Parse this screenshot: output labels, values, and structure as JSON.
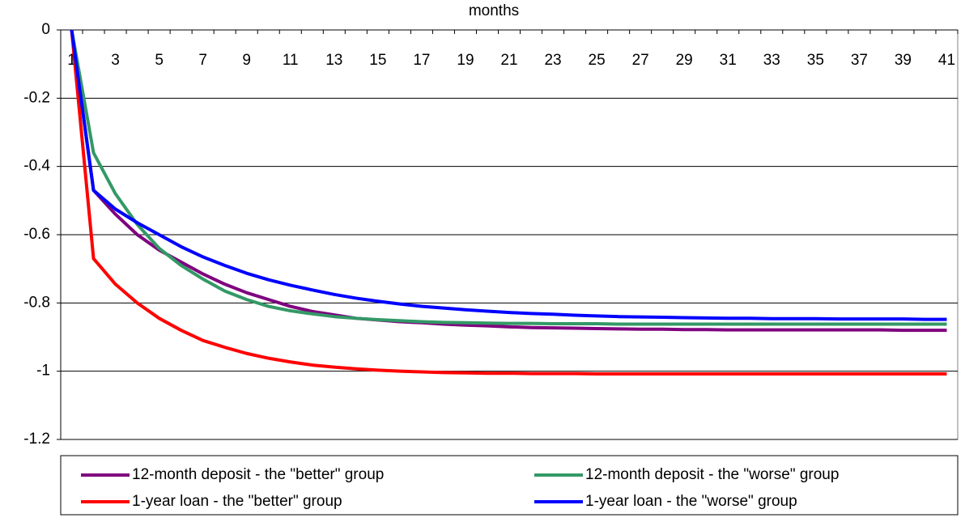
{
  "chart_data": {
    "type": "line",
    "x_label": "months",
    "categories": [
      1,
      null,
      3,
      null,
      5,
      null,
      7,
      null,
      9,
      null,
      11,
      null,
      13,
      null,
      15,
      null,
      17,
      null,
      19,
      null,
      21,
      null,
      23,
      null,
      25,
      null,
      27,
      null,
      29,
      null,
      31,
      null,
      33,
      null,
      35,
      null,
      37,
      null,
      39,
      null,
      41
    ],
    "ylim": [
      0,
      -1.2
    ],
    "yticks": [
      0,
      -0.2,
      -0.4,
      -0.6,
      -0.8,
      -1,
      -1.2
    ],
    "grid": true,
    "legend": "bottom",
    "series": [
      {
        "name": "12-month deposit - the \"better\" group",
        "color": "#7f007f",
        "values": [
          0,
          -0.47,
          -0.54,
          -0.6,
          -0.645,
          -0.68,
          -0.715,
          -0.745,
          -0.77,
          -0.79,
          -0.81,
          -0.825,
          -0.835,
          -0.845,
          -0.85,
          -0.855,
          -0.858,
          -0.862,
          -0.865,
          -0.867,
          -0.87,
          -0.872,
          -0.873,
          -0.874,
          -0.875,
          -0.876,
          -0.877,
          -0.877,
          -0.878,
          -0.878,
          -0.879,
          -0.879,
          -0.879,
          -0.879,
          -0.879,
          -0.879,
          -0.879,
          -0.879,
          -0.88,
          -0.88,
          -0.88
        ]
      },
      {
        "name": "12-month deposit - the \"worse\" group",
        "color": "#339966",
        "values": [
          0,
          -0.36,
          -0.48,
          -0.57,
          -0.64,
          -0.69,
          -0.73,
          -0.765,
          -0.79,
          -0.81,
          -0.823,
          -0.832,
          -0.84,
          -0.845,
          -0.849,
          -0.852,
          -0.855,
          -0.857,
          -0.858,
          -0.859,
          -0.86,
          -0.86,
          -0.861,
          -0.861,
          -0.861,
          -0.862,
          -0.862,
          -0.862,
          -0.862,
          -0.862,
          -0.862,
          -0.862,
          -0.862,
          -0.862,
          -0.862,
          -0.862,
          -0.862,
          -0.862,
          -0.862,
          -0.862,
          -0.862
        ]
      },
      {
        "name": "1-year loan - the \"better\" group",
        "color": "#ff0000",
        "values": [
          0,
          -0.67,
          -0.745,
          -0.8,
          -0.845,
          -0.88,
          -0.91,
          -0.93,
          -0.948,
          -0.962,
          -0.973,
          -0.982,
          -0.988,
          -0.993,
          -0.997,
          -1.0,
          -1.002,
          -1.004,
          -1.005,
          -1.006,
          -1.006,
          -1.007,
          -1.007,
          -1.007,
          -1.008,
          -1.008,
          -1.008,
          -1.008,
          -1.008,
          -1.008,
          -1.008,
          -1.008,
          -1.008,
          -1.008,
          -1.008,
          -1.008,
          -1.008,
          -1.008,
          -1.008,
          -1.008,
          -1.008
        ]
      },
      {
        "name": "1-year loan - the \"worse\" group",
        "color": "#0000ff",
        "values": [
          0,
          -0.47,
          -0.525,
          -0.565,
          -0.6,
          -0.635,
          -0.665,
          -0.69,
          -0.713,
          -0.732,
          -0.748,
          -0.762,
          -0.775,
          -0.786,
          -0.795,
          -0.803,
          -0.81,
          -0.815,
          -0.82,
          -0.824,
          -0.828,
          -0.831,
          -0.833,
          -0.836,
          -0.838,
          -0.84,
          -0.841,
          -0.842,
          -0.843,
          -0.844,
          -0.845,
          -0.845,
          -0.846,
          -0.846,
          -0.846,
          -0.847,
          -0.847,
          -0.847,
          -0.847,
          -0.848,
          -0.848
        ]
      }
    ]
  }
}
